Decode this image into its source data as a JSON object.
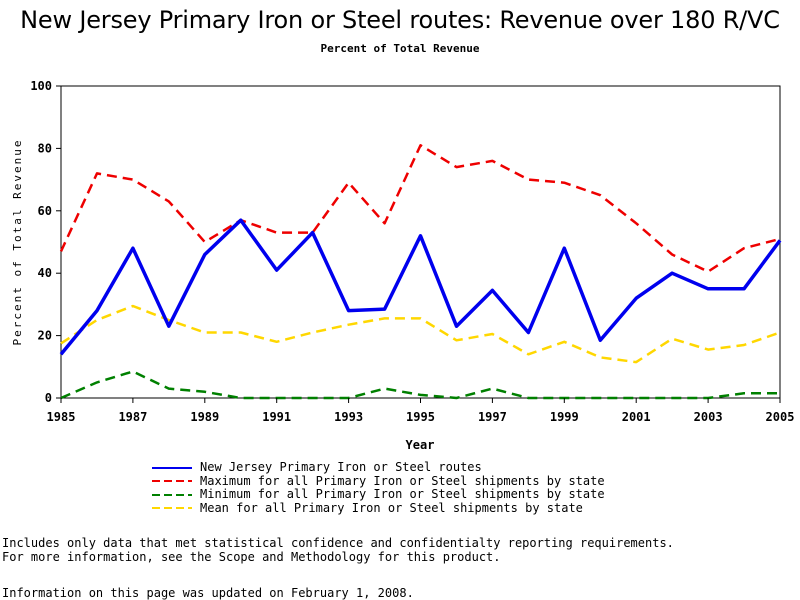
{
  "chart_data": {
    "type": "line",
    "title": "New Jersey Primary Iron or Steel routes: Revenue over 180 R/VC",
    "subtitle": "Percent of Total Revenue",
    "xlabel": "Year",
    "ylabel": "Percent of Total Revenue",
    "xlim": [
      1985,
      2005
    ],
    "ylim": [
      0,
      100
    ],
    "x": [
      1985,
      1986,
      1987,
      1988,
      1989,
      1990,
      1991,
      1992,
      1993,
      1994,
      1995,
      1996,
      1997,
      1998,
      1999,
      2000,
      2001,
      2002,
      2003,
      2004,
      2005
    ],
    "x_ticks": [
      "1985",
      "1987",
      "1989",
      "1991",
      "1993",
      "1995",
      "1997",
      "1999",
      "2001",
      "2003",
      "2005"
    ],
    "y_ticks": [
      "0",
      "20",
      "40",
      "60",
      "80",
      "100"
    ],
    "series": [
      {
        "name": "New Jersey Primary Iron or Steel routes",
        "color": "#0000ee",
        "style": "solid",
        "values": [
          14,
          28,
          48,
          23,
          46,
          57,
          41,
          53,
          28,
          28.5,
          52,
          23,
          34.5,
          21,
          48,
          18.5,
          32,
          40,
          35,
          35,
          50.5
        ]
      },
      {
        "name": "Maximum for all Primary Iron or Steel shipments by state",
        "color": "#ee0000",
        "style": "dashed",
        "values": [
          47,
          72,
          70,
          63,
          50,
          57,
          53,
          53,
          69,
          56,
          81,
          74,
          76,
          70,
          69,
          65,
          56,
          46,
          40.5,
          48,
          51
        ]
      },
      {
        "name": "Minimum for all Primary Iron or Steel shipments by state",
        "color": "#008000",
        "style": "dashed",
        "values": [
          0,
          5,
          8.5,
          3,
          2,
          0,
          0,
          0,
          0,
          3,
          1,
          0,
          3,
          0,
          0,
          0,
          0,
          0,
          0,
          1.5,
          1.5
        ]
      },
      {
        "name": "Mean for all Primary Iron or Steel shipments by state",
        "color": "#ffd700",
        "style": "dashed",
        "values": [
          17.5,
          25,
          29.5,
          25,
          21,
          21,
          18,
          21,
          23.5,
          25.5,
          25.5,
          18.5,
          20.5,
          14,
          18,
          13,
          11.5,
          19,
          15.5,
          17,
          21
        ]
      }
    ]
  },
  "notes": {
    "line1": "Includes only data that met statistical confidence and confidentialty reporting requirements.",
    "line2": "For more information, see the Scope and Methodology for this product.",
    "updated": "Information on this page was updated on February 1, 2008."
  }
}
